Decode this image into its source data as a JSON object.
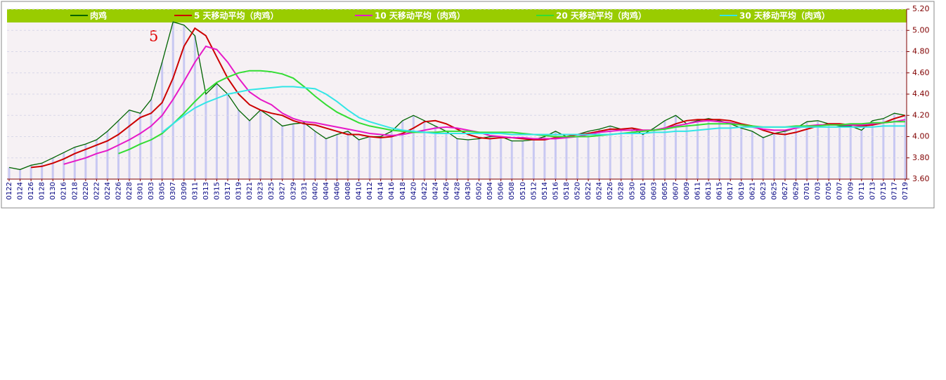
{
  "chart_data": {
    "type": "line",
    "annotation": "5",
    "categories": [
      "0122",
      "0124",
      "0126",
      "0128",
      "0130",
      "0216",
      "0218",
      "0220",
      "0222",
      "0224",
      "0226",
      "0228",
      "0301",
      "0303",
      "0305",
      "0307",
      "0309",
      "0311",
      "0313",
      "0315",
      "0317",
      "0319",
      "0321",
      "0323",
      "0325",
      "0327",
      "0329",
      "0331",
      "0402",
      "0404",
      "0406",
      "0408",
      "0410",
      "0412",
      "0414",
      "0416",
      "0418",
      "0420",
      "0422",
      "0424",
      "0426",
      "0428",
      "0430",
      "0502",
      "0504",
      "0506",
      "0508",
      "0510",
      "0512",
      "0514",
      "0516",
      "0518",
      "0520",
      "0522",
      "0524",
      "0526",
      "0528",
      "0530",
      "0601",
      "0603",
      "0605",
      "0607",
      "0609",
      "0611",
      "0613",
      "0615",
      "0617",
      "0619",
      "0621",
      "0623",
      "0625",
      "0627",
      "0629",
      "0701",
      "0703",
      "0705",
      "0707",
      "0709",
      "0711",
      "0713",
      "0715",
      "0717",
      "0719"
    ],
    "series": [
      {
        "name": "肉鸡",
        "color": "#006400",
        "values": [
          3.71,
          3.69,
          3.73,
          3.75,
          3.8,
          3.85,
          3.9,
          3.93,
          3.97,
          4.05,
          4.15,
          4.25,
          4.22,
          4.35,
          4.7,
          5.08,
          5.05,
          4.95,
          4.4,
          4.5,
          4.4,
          4.25,
          4.15,
          4.25,
          4.18,
          4.1,
          4.12,
          4.13,
          4.05,
          3.98,
          4.02,
          4.05,
          3.97,
          4.0,
          4.0,
          4.05,
          4.15,
          4.2,
          4.15,
          4.1,
          4.05,
          3.98,
          3.97,
          3.98,
          4.0,
          4.0,
          3.96,
          3.96,
          3.97,
          4.0,
          4.05,
          4.0,
          4.02,
          4.05,
          4.07,
          4.1,
          4.07,
          4.08,
          4.02,
          4.08,
          4.15,
          4.2,
          4.12,
          4.15,
          4.17,
          4.15,
          4.12,
          4.08,
          4.05,
          3.99,
          4.03,
          4.05,
          4.08,
          4.14,
          4.15,
          4.12,
          4.1,
          4.1,
          4.06,
          4.15,
          4.17,
          4.22,
          4.2
        ]
      },
      {
        "name": "5 天移动平均（肉鸡）",
        "color": "#cc0000",
        "values": [
          null,
          null,
          3.71,
          3.72,
          3.75,
          3.79,
          3.84,
          3.88,
          3.92,
          3.96,
          4.02,
          4.1,
          4.18,
          4.22,
          4.32,
          4.55,
          4.85,
          5.02,
          4.95,
          4.75,
          4.55,
          4.4,
          4.3,
          4.25,
          4.22,
          4.2,
          4.15,
          4.12,
          4.11,
          4.08,
          4.05,
          4.02,
          4.02,
          4.0,
          3.99,
          4.0,
          4.03,
          4.08,
          4.14,
          4.15,
          4.12,
          4.07,
          4.02,
          3.99,
          3.98,
          3.99,
          3.99,
          3.98,
          3.97,
          3.97,
          3.99,
          4.0,
          4.02,
          4.03,
          4.05,
          4.07,
          4.07,
          4.08,
          4.06,
          4.06,
          4.08,
          4.12,
          4.15,
          4.16,
          4.16,
          4.16,
          4.15,
          4.12,
          4.1,
          4.06,
          4.03,
          4.02,
          4.04,
          4.07,
          4.1,
          4.12,
          4.12,
          4.11,
          4.1,
          4.11,
          4.13,
          4.17,
          4.2
        ]
      },
      {
        "name": "10 天移动平均（肉鸡）",
        "color": "#e619c7",
        "values": [
          null,
          null,
          null,
          null,
          null,
          3.74,
          3.77,
          3.8,
          3.84,
          3.87,
          3.92,
          3.97,
          4.03,
          4.1,
          4.2,
          4.35,
          4.52,
          4.7,
          4.85,
          4.82,
          4.7,
          4.55,
          4.42,
          4.35,
          4.3,
          4.22,
          4.17,
          4.14,
          4.13,
          4.11,
          4.09,
          4.07,
          4.05,
          4.03,
          4.02,
          4.01,
          4.02,
          4.04,
          4.06,
          4.08,
          4.09,
          4.08,
          4.06,
          4.04,
          4.01,
          4.0,
          3.99,
          3.99,
          3.98,
          3.98,
          3.98,
          3.99,
          4.0,
          4.02,
          4.04,
          4.05,
          4.06,
          4.06,
          4.06,
          4.06,
          4.08,
          4.1,
          4.12,
          4.14,
          4.15,
          4.14,
          4.13,
          4.11,
          4.09,
          4.07,
          4.06,
          4.06,
          4.08,
          4.1,
          4.11,
          4.11,
          4.11,
          4.11,
          4.11,
          4.12,
          4.13,
          4.14,
          4.16
        ]
      },
      {
        "name": "20 天移动平均（肉鸡）",
        "color": "#33dd33",
        "values": [
          null,
          null,
          null,
          null,
          null,
          null,
          null,
          null,
          null,
          null,
          3.84,
          3.88,
          3.93,
          3.97,
          4.03,
          4.12,
          4.22,
          4.33,
          4.43,
          4.51,
          4.56,
          4.6,
          4.62,
          4.62,
          4.61,
          4.59,
          4.55,
          4.47,
          4.38,
          4.3,
          4.23,
          4.18,
          4.13,
          4.1,
          4.08,
          4.06,
          4.05,
          4.04,
          4.04,
          4.04,
          4.05,
          4.05,
          4.05,
          4.04,
          4.04,
          4.04,
          4.04,
          4.03,
          4.02,
          4.01,
          4.0,
          4.0,
          4.0,
          4.0,
          4.01,
          4.02,
          4.03,
          4.04,
          4.05,
          4.06,
          4.07,
          4.09,
          4.1,
          4.11,
          4.12,
          4.12,
          4.12,
          4.11,
          4.1,
          4.09,
          4.09,
          4.09,
          4.1,
          4.1,
          4.1,
          4.11,
          4.11,
          4.12,
          4.12,
          4.13,
          4.13,
          4.14,
          4.14
        ]
      },
      {
        "name": "30 天移动平均（肉鸡）",
        "color": "#33e6e6",
        "values": [
          null,
          null,
          null,
          null,
          null,
          null,
          null,
          null,
          null,
          null,
          null,
          null,
          null,
          null,
          4.04,
          4.12,
          4.2,
          4.27,
          4.32,
          4.36,
          4.4,
          4.42,
          4.44,
          4.45,
          4.46,
          4.47,
          4.47,
          4.46,
          4.45,
          4.4,
          4.33,
          4.25,
          4.18,
          4.14,
          4.11,
          4.08,
          4.06,
          4.05,
          4.04,
          4.03,
          4.03,
          4.03,
          4.03,
          4.03,
          4.03,
          4.03,
          4.02,
          4.02,
          4.02,
          4.02,
          4.02,
          4.02,
          4.02,
          4.02,
          4.02,
          4.02,
          4.03,
          4.03,
          4.03,
          4.04,
          4.04,
          4.05,
          4.05,
          4.06,
          4.07,
          4.08,
          4.08,
          4.09,
          4.09,
          4.09,
          4.09,
          4.09,
          4.09,
          4.09,
          4.09,
          4.09,
          4.09,
          4.09,
          4.09,
          4.09,
          4.1,
          4.1,
          4.1
        ]
      }
    ],
    "ylim": [
      3.6,
      5.2
    ],
    "yticks": [
      {
        "value": 3.6,
        "label": "3.60"
      },
      {
        "value": 3.8,
        "label": "3.80"
      },
      {
        "value": 4.0,
        "label": "4.00"
      },
      {
        "value": 4.2,
        "label": "4.20"
      },
      {
        "value": 4.4,
        "label": "4.40"
      },
      {
        "value": 4.6,
        "label": "4.60"
      },
      {
        "value": 4.8,
        "label": "4.80"
      },
      {
        "value": 5.0,
        "label": "5.00"
      },
      {
        "value": 5.2,
        "label": "5.20"
      }
    ],
    "grid": true
  }
}
